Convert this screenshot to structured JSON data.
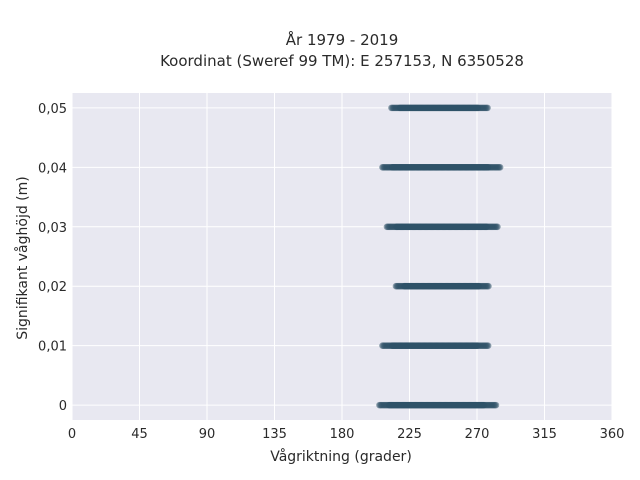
{
  "chart_data": {
    "type": "scatter",
    "title_lines": [
      "År 1979 - 2019",
      "Koordinat (Sweref 99 TM): E 257153, N 6350528"
    ],
    "xlabel": "Vågriktning (grader)",
    "ylabel": "Signifikant våghöjd (m)",
    "xlim": [
      0,
      360
    ],
    "ylim": [
      -0.0025,
      0.0525
    ],
    "xticks": [
      0,
      45,
      90,
      135,
      180,
      225,
      270,
      315,
      360
    ],
    "xtick_labels": [
      "0",
      "45",
      "90",
      "135",
      "180",
      "225",
      "270",
      "315",
      "360"
    ],
    "yticks": [
      0,
      0.01,
      0.02,
      0.03,
      0.04,
      0.05
    ],
    "ytick_labels": [
      "0",
      "0,01",
      "0,02",
      "0,03",
      "0,04",
      "0,05"
    ],
    "grid": true,
    "marker_color": "#2f5268",
    "plot_background": "#e8e8f1",
    "series": [
      {
        "bands": [
          {
            "y": 0.05,
            "x_min": 213,
            "x_max": 277
          },
          {
            "y": 0.04,
            "x_min": 207,
            "x_max": 286
          },
          {
            "y": 0.03,
            "x_min": 210,
            "x_max": 284
          },
          {
            "y": 0.02,
            "x_min": 216,
            "x_max": 278
          },
          {
            "y": 0.01,
            "x_min": 207,
            "x_max": 278
          },
          {
            "y": 0.0,
            "x_min": 205,
            "x_max": 283
          }
        ]
      }
    ]
  }
}
